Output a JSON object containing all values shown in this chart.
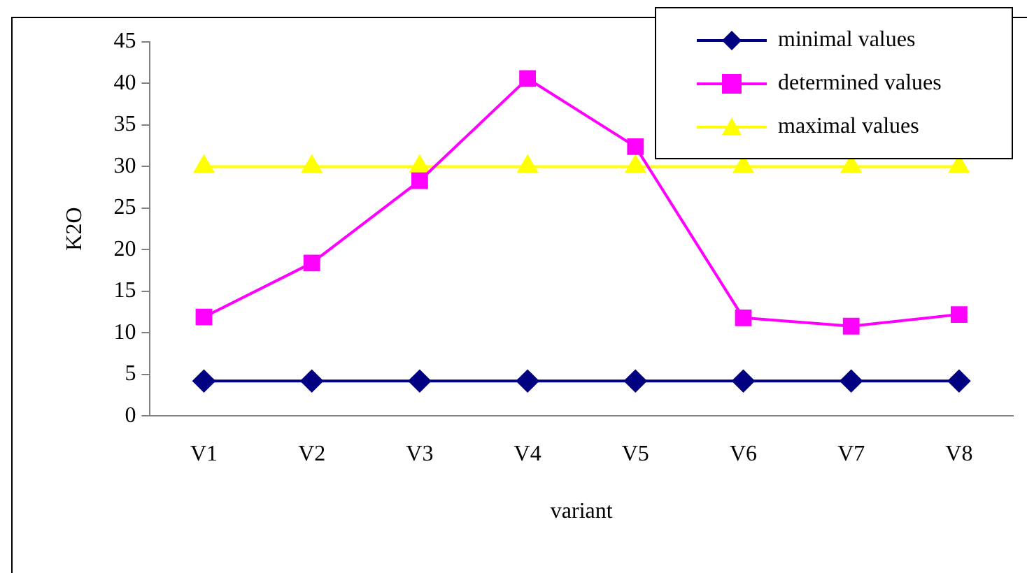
{
  "chart_data": {
    "type": "line",
    "xlabel": "variant",
    "ylabel": "K2O",
    "categories": [
      "V1",
      "V2",
      "V3",
      "V4",
      "V5",
      "V6",
      "V7",
      "V8"
    ],
    "series": [
      {
        "name": "minimal values",
        "color": "#000080",
        "marker": "diamond",
        "values": [
          4.2,
          4.2,
          4.2,
          4.2,
          4.2,
          4.2,
          4.2,
          4.2
        ]
      },
      {
        "name": "determined values",
        "color": "#ff00ff",
        "marker": "square",
        "values": [
          11.9,
          18.4,
          28.3,
          40.6,
          32.4,
          11.8,
          10.8,
          12.2
        ]
      },
      {
        "name": "maximal values",
        "color": "#ffff00",
        "marker": "triangle",
        "values": [
          30,
          30,
          30,
          30,
          30,
          30,
          30,
          30
        ]
      }
    ],
    "ylim": [
      0,
      45
    ],
    "yticks": [
      0,
      5,
      10,
      15,
      20,
      25,
      30,
      35,
      40,
      45
    ],
    "grid": false,
    "legend": "top right"
  }
}
